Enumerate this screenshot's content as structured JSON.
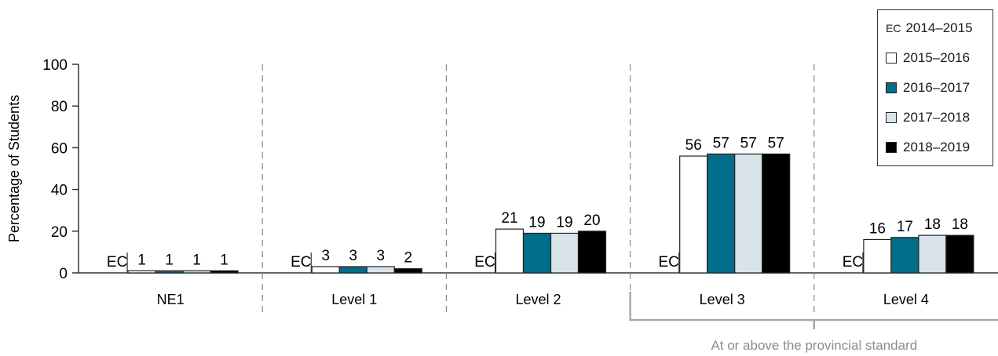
{
  "chart_data": {
    "type": "bar",
    "ylabel": "Percentage of Students",
    "ylim": [
      0,
      100
    ],
    "yticks": [
      0,
      20,
      40,
      60,
      80,
      100
    ],
    "categories": [
      "NE1",
      "Level 1",
      "Level 2",
      "Level 3",
      "Level 4"
    ],
    "series": [
      {
        "name": "2014–2015",
        "values": [
          "EC",
          "EC",
          "EC",
          "EC",
          "EC"
        ],
        "color": "#ffffff",
        "marker": "EC"
      },
      {
        "name": "2015–2016",
        "values": [
          1,
          3,
          21,
          56,
          16
        ],
        "color": "#ffffff"
      },
      {
        "name": "2016–2017",
        "values": [
          1,
          3,
          19,
          57,
          17
        ],
        "color": "#006e8a"
      },
      {
        "name": "2017–2018",
        "values": [
          1,
          3,
          19,
          57,
          18
        ],
        "color": "#d8e4ea"
      },
      {
        "name": "2018–2019",
        "values": [
          1,
          2,
          20,
          57,
          18
        ],
        "color": "#000000"
      }
    ],
    "bracket_label": "At or above the provincial standard",
    "grid": false,
    "legend_position": "top-right"
  }
}
